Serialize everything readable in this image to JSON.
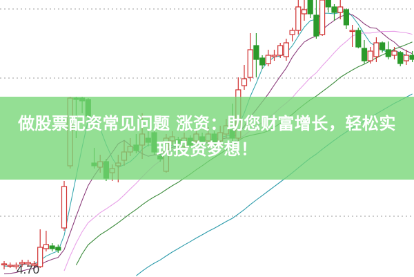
{
  "banner": {
    "line1": "做股票配资常见问题 涨资：助您财富增长，轻松实",
    "line2": "现投资梦想！"
  },
  "chart_data": {
    "type": "candlestick",
    "title": "",
    "ylim": [
      4.645,
      6.65
    ],
    "grid": "dotted horizontal",
    "price_label": "4.70",
    "gridlines": [
      6.585,
      6.085,
      5.085
    ],
    "colors": {
      "up": "#d03030",
      "down": "#2a9a2a",
      "ma5": "#38a8b0",
      "ma10": "#8a3a7a",
      "ma20": "#e8a0e8",
      "ma30": "#3a8a3a",
      "ma60": "#2a9aaa",
      "banner": "#76d676"
    },
    "moving_averages": [
      5,
      10,
      20,
      30,
      60
    ],
    "candles": [
      [
        4.74,
        4.74,
        4.76,
        4.7
      ],
      [
        4.73,
        4.73,
        4.75,
        4.71
      ],
      [
        4.72,
        4.73,
        4.75,
        4.7
      ],
      [
        4.74,
        4.75,
        4.77,
        4.72
      ],
      [
        4.74,
        4.75,
        4.77,
        4.72
      ],
      [
        4.73,
        4.74,
        4.76,
        4.71
      ],
      [
        4.72,
        4.86,
        4.99,
        4.71
      ],
      [
        4.85,
        4.88,
        4.98,
        4.83
      ],
      [
        4.87,
        4.85,
        4.89,
        4.83
      ],
      [
        4.86,
        4.84,
        4.88,
        4.82
      ],
      [
        5.0,
        5.3,
        5.34,
        4.98
      ],
      [
        5.45,
        5.94,
        5.95,
        5.43
      ],
      [
        5.94,
        5.93,
        5.95,
        5.65
      ],
      [
        5.94,
        5.92,
        5.95,
        5.83
      ],
      [
        5.93,
        5.81,
        5.94,
        5.78
      ],
      [
        5.47,
        5.45,
        5.58,
        5.43
      ],
      [
        5.44,
        5.48,
        5.53,
        5.4
      ],
      [
        5.48,
        5.36,
        5.5,
        5.34
      ],
      [
        5.4,
        5.43,
        5.46,
        5.34
      ],
      [
        5.45,
        5.47,
        5.53,
        5.33
      ],
      [
        5.49,
        5.55,
        5.63,
        5.45
      ],
      [
        5.55,
        5.59,
        5.65,
        5.52
      ],
      [
        5.6,
        5.56,
        5.68,
        5.54
      ],
      [
        5.6,
        5.68,
        5.83,
        5.5
      ],
      [
        5.65,
        5.62,
        5.7,
        5.59
      ],
      [
        5.69,
        5.55,
        5.7,
        5.53
      ],
      [
        5.52,
        5.5,
        5.54,
        5.48
      ],
      [
        5.41,
        5.65,
        5.68,
        5.4
      ],
      [
        5.63,
        5.66,
        5.7,
        5.6
      ],
      [
        5.64,
        5.59,
        5.66,
        5.56
      ],
      [
        5.59,
        5.65,
        5.69,
        5.57
      ],
      [
        5.65,
        5.6,
        5.67,
        5.58
      ],
      [
        5.63,
        5.68,
        5.71,
        5.6
      ],
      [
        5.66,
        5.62,
        5.69,
        5.59
      ],
      [
        5.63,
        5.68,
        5.73,
        5.59
      ],
      [
        5.68,
        5.6,
        5.7,
        5.57
      ],
      [
        5.63,
        5.69,
        5.74,
        5.59
      ],
      [
        5.68,
        5.74,
        5.79,
        5.65
      ],
      [
        5.71,
        5.65,
        5.9,
        5.63
      ],
      [
        5.65,
        6.0,
        6.09,
        5.63
      ],
      [
        6.03,
        6.08,
        6.18,
        6.0
      ],
      [
        6.09,
        6.29,
        6.41,
        6.06
      ],
      [
        6.32,
        6.22,
        6.41,
        6.09
      ],
      [
        6.23,
        6.18,
        6.25,
        6.15
      ],
      [
        6.19,
        6.25,
        6.29,
        6.17
      ],
      [
        6.24,
        6.25,
        6.29,
        6.21
      ],
      [
        6.25,
        6.32,
        6.34,
        6.23
      ],
      [
        6.24,
        6.34,
        6.37,
        6.21
      ],
      [
        6.4,
        6.43,
        6.45,
        6.35
      ],
      [
        6.43,
        6.6,
        6.65,
        6.4
      ],
      [
        6.55,
        6.58,
        6.65,
        6.5
      ],
      [
        6.65,
        6.55,
        6.65,
        6.52
      ],
      [
        6.54,
        6.39,
        6.65,
        6.37
      ],
      [
        6.4,
        6.65,
        6.65,
        6.39
      ],
      [
        6.65,
        6.6,
        6.65,
        6.56
      ],
      [
        6.6,
        6.56,
        6.62,
        6.5
      ],
      [
        6.56,
        6.6,
        6.65,
        6.51
      ],
      [
        6.58,
        6.47,
        6.59,
        6.44
      ],
      [
        6.43,
        6.43,
        6.47,
        6.31
      ],
      [
        6.43,
        6.31,
        6.45,
        6.3
      ],
      [
        6.3,
        6.21,
        6.36,
        6.19
      ],
      [
        6.21,
        6.28,
        6.31,
        6.19
      ],
      [
        6.24,
        6.34,
        6.38,
        6.2
      ],
      [
        6.34,
        6.29,
        6.35,
        6.27
      ],
      [
        6.29,
        6.24,
        6.35,
        6.22
      ],
      [
        6.25,
        6.28,
        6.31,
        6.22
      ],
      [
        6.27,
        6.19,
        6.28,
        6.17
      ],
      [
        6.21,
        6.25,
        6.29,
        6.18
      ],
      [
        6.25,
        6.22,
        6.28,
        6.2
      ]
    ]
  }
}
